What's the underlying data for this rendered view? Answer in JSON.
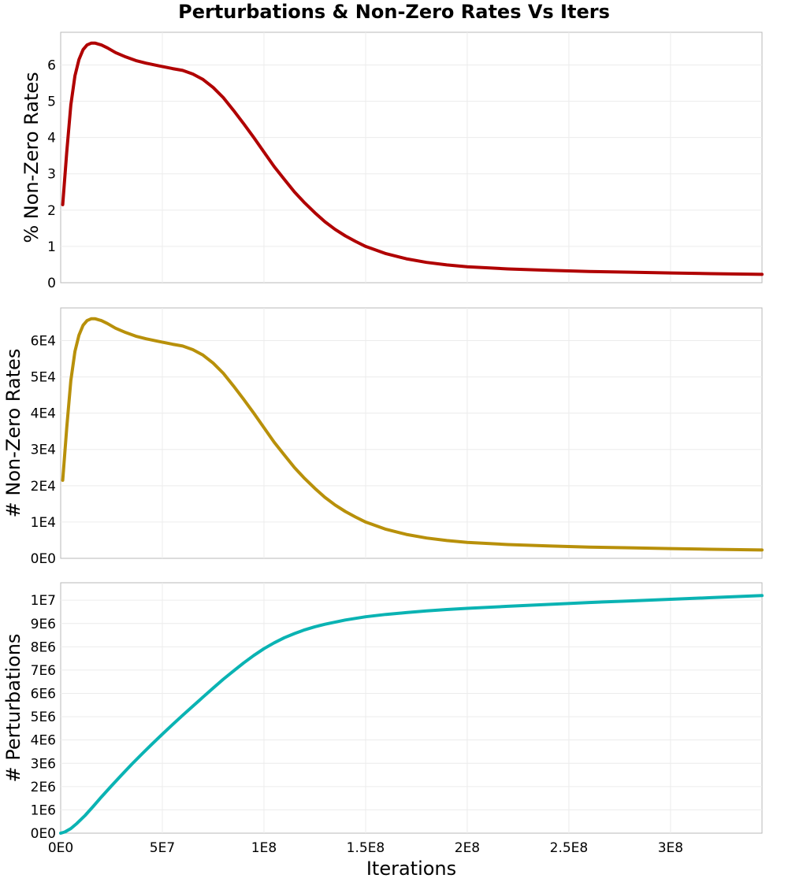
{
  "figure": {
    "title": "Perturbations & Non-Zero Rates Vs Iters"
  },
  "chart_data": [
    {
      "type": "line",
      "ylabel": "% Non-Zero Rates",
      "xlabel": "",
      "xlim": [
        0,
        345000000
      ],
      "ylim": [
        0,
        6.9
      ],
      "y_ticks": [
        0,
        1,
        2,
        3,
        4,
        5,
        6
      ],
      "y_tick_labels": [
        "0",
        "1",
        "2",
        "3",
        "4",
        "5",
        "6"
      ],
      "x_ticks": [
        0,
        50000000,
        100000000,
        150000000,
        200000000,
        250000000,
        300000000
      ],
      "x_tick_labels": [],
      "grid": true,
      "series": [
        {
          "color": "#b00000",
          "x": [
            1000000,
            3000000,
            5000000,
            7000000,
            9000000,
            11000000,
            13000000,
            15000000,
            17000000,
            20000000,
            23000000,
            27000000,
            32000000,
            37000000,
            42000000,
            48000000,
            55000000,
            60000000,
            65000000,
            70000000,
            75000000,
            80000000,
            85000000,
            90000000,
            95000000,
            100000000,
            105000000,
            110000000,
            115000000,
            120000000,
            125000000,
            130000000,
            135000000,
            140000000,
            145000000,
            150000000,
            160000000,
            170000000,
            180000000,
            190000000,
            200000000,
            220000000,
            240000000,
            260000000,
            280000000,
            300000000,
            320000000,
            345000000
          ],
          "y": [
            2.15,
            3.6,
            4.9,
            5.7,
            6.15,
            6.42,
            6.55,
            6.6,
            6.6,
            6.55,
            6.47,
            6.34,
            6.22,
            6.12,
            6.05,
            5.98,
            5.9,
            5.85,
            5.75,
            5.6,
            5.38,
            5.1,
            4.75,
            4.38,
            4.0,
            3.6,
            3.2,
            2.85,
            2.5,
            2.2,
            1.93,
            1.68,
            1.47,
            1.29,
            1.14,
            1.0,
            0.8,
            0.66,
            0.56,
            0.49,
            0.44,
            0.38,
            0.34,
            0.31,
            0.29,
            0.27,
            0.25,
            0.23
          ]
        }
      ]
    },
    {
      "type": "line",
      "ylabel": "# Non-Zero Rates",
      "xlabel": "",
      "xlim": [
        0,
        345000000
      ],
      "ylim": [
        0,
        69000
      ],
      "y_ticks": [
        0,
        10000,
        20000,
        30000,
        40000,
        50000,
        60000
      ],
      "y_tick_labels": [
        "0E0",
        "1E4",
        "2E4",
        "3E4",
        "4E4",
        "5E4",
        "6E4"
      ],
      "x_ticks": [
        0,
        50000000,
        100000000,
        150000000,
        200000000,
        250000000,
        300000000
      ],
      "x_tick_labels": [],
      "grid": true,
      "series": [
        {
          "color": "#b8900a",
          "x": [
            1000000,
            3000000,
            5000000,
            7000000,
            9000000,
            11000000,
            13000000,
            15000000,
            17000000,
            20000000,
            23000000,
            27000000,
            32000000,
            37000000,
            42000000,
            48000000,
            55000000,
            60000000,
            65000000,
            70000000,
            75000000,
            80000000,
            85000000,
            90000000,
            95000000,
            100000000,
            105000000,
            110000000,
            115000000,
            120000000,
            125000000,
            130000000,
            135000000,
            140000000,
            145000000,
            150000000,
            160000000,
            170000000,
            180000000,
            190000000,
            200000000,
            220000000,
            240000000,
            260000000,
            280000000,
            300000000,
            320000000,
            345000000
          ],
          "y": [
            21500,
            36000,
            49000,
            57000,
            61500,
            64200,
            65500,
            66000,
            66000,
            65500,
            64700,
            63400,
            62200,
            61200,
            60500,
            59800,
            59000,
            58500,
            57500,
            56000,
            53800,
            51000,
            47500,
            43800,
            40000,
            36000,
            32000,
            28500,
            25000,
            22000,
            19300,
            16800,
            14700,
            12900,
            11400,
            10000,
            8000,
            6600,
            5600,
            4900,
            4400,
            3800,
            3400,
            3100,
            2900,
            2700,
            2500,
            2300
          ]
        }
      ]
    },
    {
      "type": "line",
      "ylabel": "# Perturbations",
      "xlabel": "Iterations",
      "xlim": [
        0,
        345000000
      ],
      "ylim": [
        0,
        10750000
      ],
      "y_ticks": [
        0,
        1000000,
        2000000,
        3000000,
        4000000,
        5000000,
        6000000,
        7000000,
        8000000,
        9000000,
        10000000
      ],
      "y_tick_labels": [
        "0E0",
        "1E6",
        "2E6",
        "3E6",
        "4E6",
        "5E6",
        "6E6",
        "7E6",
        "8E6",
        "9E6",
        "1E7"
      ],
      "x_ticks": [
        0,
        50000000,
        100000000,
        150000000,
        200000000,
        250000000,
        300000000
      ],
      "x_tick_labels": [
        "0E0",
        "5E7",
        "1E8",
        "1.5E8",
        "2E8",
        "2.5E8",
        "3E8"
      ],
      "grid": true,
      "series": [
        {
          "color": "#0ab3b3",
          "x": [
            0,
            2000000,
            5000000,
            8000000,
            12000000,
            16000000,
            20000000,
            25000000,
            30000000,
            35000000,
            40000000,
            45000000,
            50000000,
            55000000,
            60000000,
            65000000,
            70000000,
            75000000,
            80000000,
            85000000,
            90000000,
            95000000,
            100000000,
            105000000,
            110000000,
            115000000,
            120000000,
            125000000,
            130000000,
            140000000,
            150000000,
            160000000,
            170000000,
            180000000,
            190000000,
            200000000,
            220000000,
            240000000,
            260000000,
            280000000,
            300000000,
            320000000,
            345000000
          ],
          "y": [
            0,
            50000,
            200000,
            420000,
            760000,
            1150000,
            1550000,
            2030000,
            2500000,
            2960000,
            3400000,
            3830000,
            4250000,
            4660000,
            5060000,
            5450000,
            5840000,
            6230000,
            6610000,
            6960000,
            7310000,
            7630000,
            7920000,
            8170000,
            8390000,
            8570000,
            8730000,
            8860000,
            8970000,
            9150000,
            9290000,
            9390000,
            9470000,
            9540000,
            9600000,
            9650000,
            9740000,
            9820000,
            9900000,
            9970000,
            10040000,
            10110000,
            10200000
          ]
        }
      ]
    }
  ]
}
